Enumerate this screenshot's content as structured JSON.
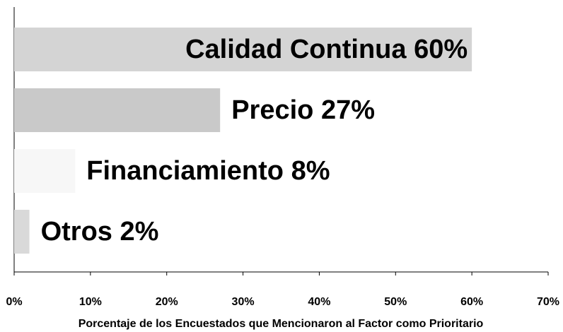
{
  "chart_data": {
    "type": "hbar",
    "x_label": "Porcentaje de los Encuestados que Mencionaron al Factor como Prioritario",
    "categories": [
      "Calidad Continua",
      "Precio",
      "Financiamiento",
      "Otros"
    ],
    "values": [
      60,
      27,
      8,
      2
    ],
    "value_labels": [
      "60%",
      "27%",
      "8%",
      "2%"
    ],
    "colors": [
      "#d4d4d4",
      "#c9c9c9",
      "#f7f7f7",
      "#d9d9d9"
    ],
    "xlim": [
      0,
      70
    ],
    "xticks": [
      {
        "value": 0,
        "label": "0%"
      },
      {
        "value": 10,
        "label": "10%"
      },
      {
        "value": 20,
        "label": "20%"
      },
      {
        "value": 30,
        "label": "30%"
      },
      {
        "value": 40,
        "label": "40%"
      },
      {
        "value": 50,
        "label": "50%"
      },
      {
        "value": 60,
        "label": "60%"
      },
      {
        "value": 70,
        "label": "70%"
      }
    ]
  }
}
